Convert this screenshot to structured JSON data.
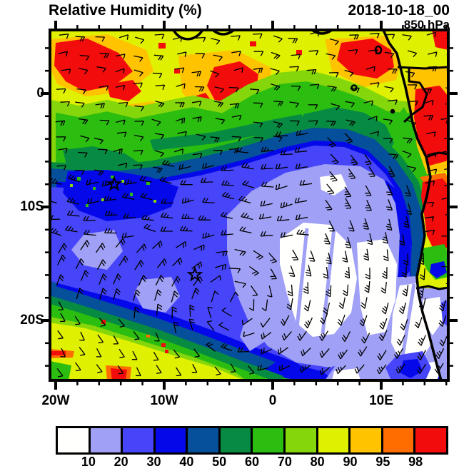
{
  "header": {
    "title": "Relative Humidity (%)",
    "datetime": "2018-10-18_00",
    "level": "850 hPa"
  },
  "chart_data": {
    "type": "heatmap",
    "title": "Relative Humidity (%)",
    "valid_time": "2018-10-18_00",
    "level": "850 hPa",
    "units": "%",
    "projection": "lat-lon map, South-East Atlantic / West-Central Africa",
    "x_axis": {
      "kind": "longitude",
      "ticks": [
        "20W",
        "10W",
        "0",
        "10E"
      ],
      "tick_lons": [
        -20,
        -10,
        0,
        10
      ],
      "minor_tick_interval_deg": 2,
      "range_lon": [
        -20.5,
        16.2
      ]
    },
    "y_axis": {
      "kind": "latitude",
      "ticks": [
        "0",
        "10S",
        "20S"
      ],
      "tick_lats": [
        0,
        -10,
        -20
      ],
      "minor_tick_interval_deg": 2,
      "range_lat": [
        5.6,
        -25.3
      ]
    },
    "colorbar": {
      "levels": [
        10,
        20,
        30,
        40,
        50,
        60,
        70,
        80,
        90,
        95,
        98
      ],
      "colors": [
        "#FFFFFE",
        "#A0A0F6",
        "#4645FA",
        "#0509E9",
        "#054F9B",
        "#078A42",
        "#2BBD10",
        "#85D60A",
        "#DFF000",
        "#FFC300",
        "#FF6D00",
        "#F20C0C"
      ],
      "orientation": "horizontal",
      "position": "bottom"
    },
    "markers": [
      {
        "shape": "star",
        "approx_lon": "14.5W",
        "approx_lat": "8S"
      },
      {
        "shape": "star",
        "approx_lon": "7W",
        "approx_lat": "16S"
      }
    ],
    "overlays": {
      "wind": "black wind barbs on regular grid",
      "wind_pattern": "easterlies north of ~2S; anticyclonic flow around subtropical high near 7W,16S; southerly flow along Angola coast",
      "geography": "African west coastline, Gabon and Angola borders, Bioko and Sao Tome islands"
    },
    "field_regions": [
      {
        "area": "northern band ~5N-2S across map",
        "rh_pct": "80-95",
        "note": "yellow/gold with embedded red cores >98"
      },
      {
        "area": "red cores top-left, top-center, top-right and Congo/Gabon interior",
        "rh_pct": ">98"
      },
      {
        "area": "equatorial transition band ~2S-5S",
        "rh_pct": "50-80",
        "note": "green with dark-green core"
      },
      {
        "area": "SE Atlantic offshore ~5S-20S",
        "rh_pct": "10-40",
        "note": "large dry blue/violet region"
      },
      {
        "area": "driest core ~5W-10E, 12S-20S and near bottom-right",
        "rh_pct": "<10",
        "note": "white patches"
      },
      {
        "area": "southwest band ~20S-25S",
        "rh_pct": "50-90",
        "note": "green/yellow with small red spots >98"
      },
      {
        "area": "Angola coastal strip ~8S-14S",
        "rh_pct": ">95",
        "note": "red strip on land"
      }
    ]
  }
}
